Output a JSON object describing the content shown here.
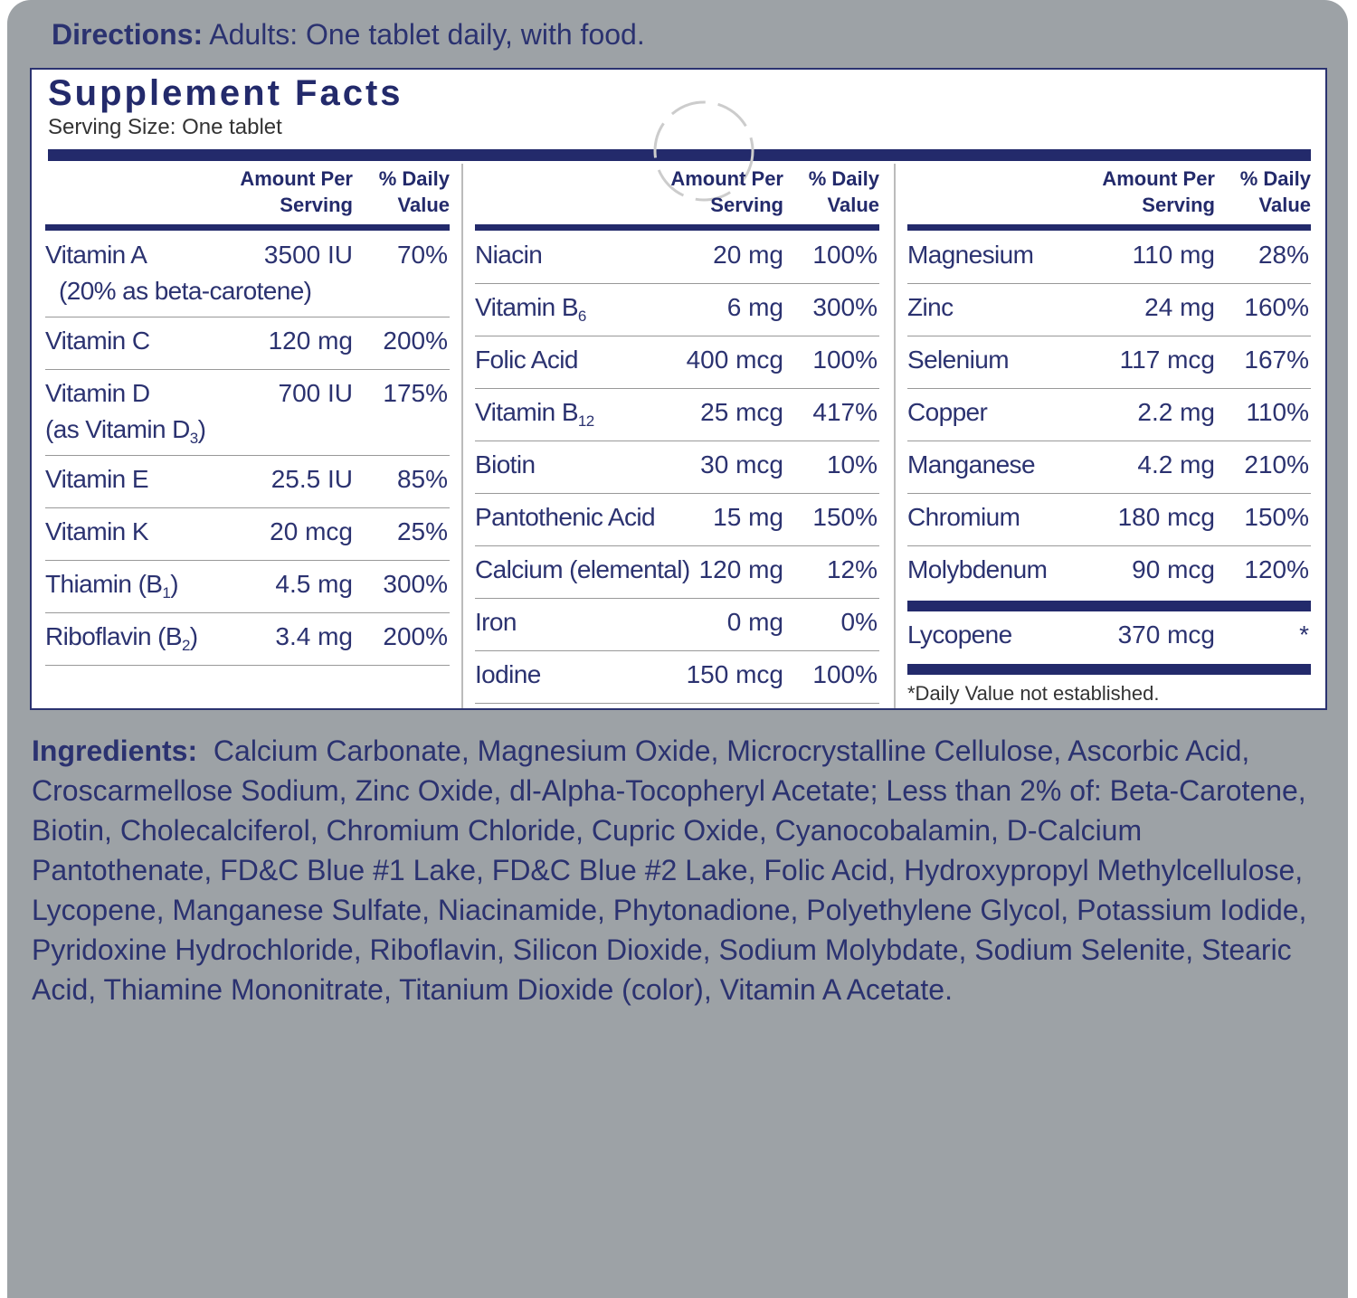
{
  "directions": {
    "label": "Directions:",
    "text": "Adults: One tablet daily, with food."
  },
  "facts": {
    "title": "Supplement Facts",
    "serving": "Serving Size: One tablet",
    "amount_header": [
      "Amount Per",
      "Serving"
    ],
    "dv_header": [
      "% Daily",
      "Value"
    ],
    "columns": [
      {
        "rows": [
          {
            "name": [
              "Vitamin A"
            ],
            "note": [
              "(20% as beta-carotene)"
            ],
            "amount": "3500 IU",
            "dv": "70%"
          },
          {
            "name": [
              "Vitamin C"
            ],
            "amount": "120 mg",
            "dv": "200%"
          },
          {
            "name": [
              "Vitamin D"
            ],
            "note": [
              "(as Vitamin D",
              {
                "sub": "3"
              },
              ")"
            ],
            "amount": "700 IU",
            "dv": "175%"
          },
          {
            "name": [
              "Vitamin E"
            ],
            "amount": "25.5 IU",
            "dv": "85%"
          },
          {
            "name": [
              "Vitamin K"
            ],
            "amount": "20 mcg",
            "dv": "25%"
          },
          {
            "name": [
              "Thiamin (B",
              {
                "sub": "1"
              },
              ")"
            ],
            "amount": "4.5 mg",
            "dv": "300%"
          },
          {
            "name": [
              "Riboflavin (B",
              {
                "sub": "2"
              },
              ")"
            ],
            "amount": "3.4 mg",
            "dv": "200%"
          }
        ]
      },
      {
        "rows": [
          {
            "name": [
              "Niacin"
            ],
            "amount": "20 mg",
            "dv": "100%"
          },
          {
            "name": [
              "Vitamin B",
              {
                "sub": "6"
              }
            ],
            "amount": "6 mg",
            "dv": "300%"
          },
          {
            "name": [
              "Folic Acid"
            ],
            "amount": "400 mcg",
            "dv": "100%"
          },
          {
            "name": [
              "Vitamin B",
              {
                "sub": "12"
              }
            ],
            "amount": "25 mcg",
            "dv": "417%"
          },
          {
            "name": [
              "Biotin"
            ],
            "amount": "30 mcg",
            "dv": "10%"
          },
          {
            "name": [
              "Pantothenic Acid"
            ],
            "amount": "15 mg",
            "dv": "150%"
          },
          {
            "name": [
              "Calcium (elemental)"
            ],
            "amount": "120 mg",
            "dv": "12%"
          },
          {
            "name": [
              "Iron"
            ],
            "amount": "0 mg",
            "dv": "0%"
          },
          {
            "name": [
              "Iodine"
            ],
            "amount": "150 mcg",
            "dv": "100%"
          }
        ]
      },
      {
        "rows": [
          {
            "name": [
              "Magnesium"
            ],
            "amount": "110 mg",
            "dv": "28%"
          },
          {
            "name": [
              "Zinc"
            ],
            "amount": "24 mg",
            "dv": "160%"
          },
          {
            "name": [
              "Selenium"
            ],
            "amount": "117 mcg",
            "dv": "167%"
          },
          {
            "name": [
              "Copper"
            ],
            "amount": "2.2 mg",
            "dv": "110%"
          },
          {
            "name": [
              "Manganese"
            ],
            "amount": "4.2 mg",
            "dv": "210%"
          },
          {
            "name": [
              "Chromium"
            ],
            "amount": "180 mcg",
            "dv": "150%"
          },
          {
            "name": [
              "Molybdenum"
            ],
            "amount": "90 mcg",
            "dv": "120%"
          }
        ],
        "extra": {
          "name": [
            "Lycopene"
          ],
          "amount": "370 mcg",
          "dv": "*"
        },
        "footnote": "*Daily Value not established."
      }
    ]
  },
  "ingredients": {
    "label": "Ingredients:",
    "text": "Calcium Carbonate, Magnesium Oxide, Microcrystalline Cellulose, Ascorbic Acid, Croscarmellose Sodium, Zinc Oxide, dl-Alpha-Tocopheryl Acetate; Less than 2% of: Beta-Carotene, Biotin, Cholecalciferol, Chromium Chloride, Cupric Oxide, Cyanocobalamin, D-Calcium Pantothenate, FD&C Blue #1 Lake, FD&C Blue #2 Lake, Folic Acid, Hydroxypropyl Methylcellulose, Lycopene, Manganese Sulfate, Niacinamide, Phytonadione, Polyethylene Glycol, Potassium Iodide, Pyridoxine Hydrochloride, Riboflavin, Silicon Dioxide, Sodium Molybdate, Sodium Selenite, Stearic Acid, Thiamine Mononitrate, Titanium Dioxide (color), Vitamin A Acetate."
  }
}
